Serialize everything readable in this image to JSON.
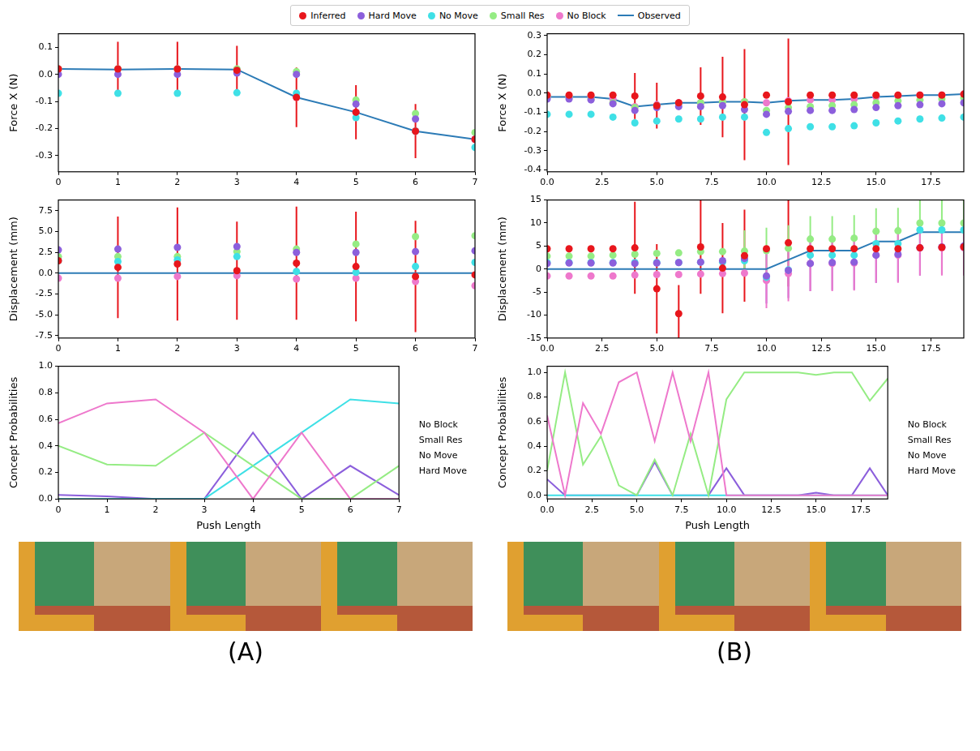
{
  "panel_labels": [
    "(A)",
    "(B)"
  ],
  "chart_data": [
    {
      "type": "scatter",
      "y_label": "Force X (N)",
      "grid": false,
      "legend": "top",
      "x": [
        0,
        1,
        2,
        3,
        4,
        5,
        6,
        7
      ],
      "xlim": [
        0,
        7
      ],
      "xticks": [
        0,
        1,
        2,
        3,
        4,
        5,
        6,
        7
      ],
      "ylim": [
        -0.36,
        0.15
      ],
      "yticks": [
        -0.3,
        -0.2,
        -0.1,
        {
          "value": 0,
          "label": "0.0"
        },
        0.1
      ],
      "series": [
        {
          "name": "Inferred",
          "color": "#e8161c",
          "marker": "circle",
          "values": [
            0.02,
            0.02,
            0.02,
            0.015,
            -0.085,
            -0.14,
            -0.21,
            -0.24
          ],
          "errors": [
            0,
            0.1,
            0.1,
            0.09,
            0.11,
            0.1,
            0.1,
            0
          ]
        },
        {
          "name": "Hard Move",
          "color": "#8c5fdc",
          "marker": "circle",
          "values": [
            0.0,
            0.0,
            0.0,
            0.005,
            0.0,
            -0.11,
            -0.165,
            -0.24
          ]
        },
        {
          "name": "No Move",
          "color": "#3fe0e6",
          "marker": "circle",
          "values": [
            -0.07,
            -0.07,
            -0.07,
            -0.068,
            -0.07,
            -0.16,
            -0.21,
            -0.27
          ]
        },
        {
          "name": "Small Res",
          "color": "#95ec84",
          "marker": "circle",
          "values": [
            0.02,
            0.02,
            0.02,
            0.02,
            0.01,
            -0.095,
            -0.145,
            -0.215
          ]
        },
        {
          "name": "No Block",
          "color": "#ee78cc",
          "marker": "circle",
          "values": [
            0.02,
            0.02,
            0.02,
            0.018,
            -0.085,
            -0.14,
            -0.21,
            -0.24
          ]
        },
        {
          "name": "Observed",
          "color": "#2c7bb6",
          "type": "line",
          "line_style": "solid",
          "values": [
            0.02,
            0.018,
            0.02,
            0.018,
            -0.085,
            -0.14,
            -0.21,
            -0.24
          ]
        }
      ]
    },
    {
      "type": "scatter",
      "y_label": "Displacement (mm)",
      "grid": false,
      "x": [
        0,
        1,
        2,
        3,
        4,
        5,
        6,
        7
      ],
      "xlim": [
        0,
        7
      ],
      "xticks": [
        0,
        1,
        2,
        3,
        4,
        5,
        6,
        7
      ],
      "ylim": [
        -7.8,
        8.8
      ],
      "yticks": [
        -7.5,
        {
          "value": -5,
          "label": "-5.0"
        },
        -2.5,
        {
          "value": 0,
          "label": "0.0"
        },
        2.5,
        {
          "value": 5,
          "label": "5.0"
        },
        7.5
      ],
      "series": [
        {
          "name": "Inferred",
          "color": "#e8161c",
          "marker": "circle",
          "values": [
            1.5,
            0.7,
            1.1,
            0.3,
            1.2,
            0.8,
            -0.4,
            -0.2
          ],
          "errors": [
            0,
            6.1,
            6.8,
            5.9,
            6.8,
            6.6,
            6.7,
            0
          ]
        },
        {
          "name": "Hard Move",
          "color": "#8c5fdc",
          "marker": "circle",
          "values": [
            2.8,
            2.9,
            3.1,
            3.2,
            2.5,
            2.5,
            2.6,
            2.7
          ]
        },
        {
          "name": "No Move",
          "color": "#3fe0e6",
          "marker": "circle",
          "values": [
            1.5,
            1.4,
            1.6,
            2.0,
            0.2,
            0.1,
            0.8,
            1.3
          ]
        },
        {
          "name": "Small Res",
          "color": "#95ec84",
          "marker": "circle",
          "values": [
            2.0,
            2.0,
            2.0,
            2.6,
            2.9,
            3.5,
            4.4,
            4.5
          ]
        },
        {
          "name": "No Block",
          "color": "#ee78cc",
          "marker": "circle",
          "values": [
            -0.6,
            -0.6,
            -0.4,
            -0.3,
            -0.7,
            -0.6,
            -1.0,
            -1.5
          ]
        },
        {
          "name": "Observed",
          "color": "#2c7bb6",
          "type": "line",
          "line_style": "solid",
          "values": [
            0,
            0,
            0,
            0,
            0,
            0,
            0,
            0
          ]
        }
      ]
    },
    {
      "type": "line",
      "x_label": "Push Length",
      "y_label": "Concept Probabilities",
      "grid": false,
      "legend": "right",
      "x": [
        0,
        1,
        2,
        3,
        4,
        5,
        6,
        7
      ],
      "xlim": [
        0,
        7
      ],
      "xticks": [
        0,
        1,
        2,
        3,
        4,
        5,
        6,
        7
      ],
      "ylim": [
        0,
        1
      ],
      "yticks": [
        {
          "value": 0,
          "label": "0.0"
        },
        0.2,
        0.4,
        0.6,
        0.8,
        {
          "value": 1,
          "label": "1.0"
        }
      ],
      "series": [
        {
          "name": "No Block",
          "color": "#ee78cc",
          "line_style": "solid",
          "values": [
            0.57,
            0.72,
            0.75,
            0.5,
            0.0,
            0.5,
            0.0,
            0.0
          ]
        },
        {
          "name": "Small Res",
          "color": "#95ec84",
          "line_style": "solid",
          "values": [
            0.4,
            0.26,
            0.25,
            0.5,
            0.25,
            0.0,
            0.0,
            0.25
          ]
        },
        {
          "name": "No Move",
          "color": "#3fe0e6",
          "line_style": "solid",
          "values": [
            0.0,
            0.0,
            0.0,
            0.0,
            0.25,
            0.5,
            0.75,
            0.72
          ]
        },
        {
          "name": "Hard Move",
          "color": "#8c5fdc",
          "line_style": "solid",
          "values": [
            0.03,
            0.02,
            0.0,
            0.0,
            0.5,
            0.0,
            0.25,
            0.03
          ]
        }
      ]
    },
    {
      "type": "scatter",
      "y_label": "Force X (N)",
      "grid": false,
      "x": [
        0,
        1,
        2,
        3,
        4,
        5,
        6,
        7,
        8,
        9,
        10,
        11,
        12,
        13,
        14,
        15,
        16,
        17,
        18,
        19
      ],
      "xlim": [
        0,
        19
      ],
      "xticks": [
        {
          "value": 0,
          "label": "0.0"
        },
        2.5,
        {
          "value": 5,
          "label": "5.0"
        },
        7.5,
        {
          "value": 10,
          "label": "10.0"
        },
        12.5,
        {
          "value": 15,
          "label": "15.0"
        },
        17.5
      ],
      "ylim": [
        -0.41,
        0.31
      ],
      "yticks": [
        -0.4,
        -0.3,
        -0.2,
        -0.1,
        {
          "value": 0,
          "label": "0.0"
        },
        0.1,
        0.2,
        0.3
      ],
      "series": [
        {
          "name": "Inferred",
          "color": "#e8161c",
          "marker": "circle",
          "values": [
            -0.01,
            -0.01,
            -0.01,
            -0.01,
            -0.015,
            -0.065,
            -0.05,
            -0.015,
            -0.02,
            -0.06,
            -0.01,
            -0.045,
            -0.01,
            -0.01,
            -0.01,
            -0.01,
            -0.01,
            -0.01,
            -0.01,
            -0.005
          ],
          "errors": [
            0,
            0,
            0,
            0,
            0.12,
            0.12,
            0.02,
            0.15,
            0.21,
            0.29,
            0,
            0.33,
            0,
            0,
            0,
            0,
            0,
            0,
            0,
            0
          ]
        },
        {
          "name": "Hard Move",
          "color": "#8c5fdc",
          "marker": "circle",
          "values": [
            -0.03,
            -0.03,
            -0.035,
            -0.055,
            -0.09,
            -0.075,
            -0.07,
            -0.07,
            -0.065,
            -0.085,
            -0.11,
            -0.095,
            -0.09,
            -0.09,
            -0.085,
            -0.075,
            -0.065,
            -0.06,
            -0.055,
            -0.05
          ]
        },
        {
          "name": "No Move",
          "color": "#3fe0e6",
          "marker": "circle",
          "values": [
            -0.11,
            -0.11,
            -0.11,
            -0.125,
            -0.155,
            -0.145,
            -0.135,
            -0.135,
            -0.125,
            -0.125,
            -0.205,
            -0.185,
            -0.175,
            -0.175,
            -0.17,
            -0.155,
            -0.145,
            -0.135,
            -0.13,
            -0.125
          ]
        },
        {
          "name": "Small Res",
          "color": "#95ec84",
          "marker": "circle",
          "values": [
            -0.02,
            -0.02,
            -0.03,
            -0.05,
            -0.075,
            -0.065,
            -0.055,
            -0.05,
            -0.045,
            -0.045,
            -0.09,
            -0.075,
            -0.07,
            -0.065,
            -0.06,
            -0.05,
            -0.04,
            -0.035,
            -0.03,
            -0.025
          ]
        },
        {
          "name": "No Block",
          "color": "#ee78cc",
          "marker": "circle",
          "values": [
            -0.02,
            -0.02,
            -0.02,
            -0.03,
            -0.07,
            -0.06,
            -0.05,
            -0.05,
            -0.045,
            -0.045,
            -0.05,
            -0.04,
            -0.035,
            -0.035,
            -0.03,
            -0.02,
            -0.015,
            -0.01,
            -0.01,
            -0.005
          ]
        },
        {
          "name": "Observed",
          "color": "#2c7bb6",
          "type": "line",
          "line_style": "solid",
          "values": [
            -0.02,
            -0.02,
            -0.02,
            -0.03,
            -0.07,
            -0.06,
            -0.05,
            -0.05,
            -0.045,
            -0.045,
            -0.05,
            -0.04,
            -0.035,
            -0.035,
            -0.03,
            -0.02,
            -0.015,
            -0.01,
            -0.01,
            -0.005
          ]
        }
      ]
    },
    {
      "type": "scatter",
      "y_label": "Displacement (mm)",
      "grid": false,
      "x": [
        0,
        1,
        2,
        3,
        4,
        5,
        6,
        7,
        8,
        9,
        10,
        11,
        12,
        13,
        14,
        15,
        16,
        17,
        18,
        19
      ],
      "xlim": [
        0,
        19
      ],
      "xticks": [
        {
          "value": 0,
          "label": "0.0"
        },
        2.5,
        {
          "value": 5,
          "label": "5.0"
        },
        7.5,
        {
          "value": 10,
          "label": "10.0"
        },
        12.5,
        {
          "value": 15,
          "label": "15.0"
        },
        17.5
      ],
      "ylim": [
        -15,
        15
      ],
      "yticks": [
        -15,
        -10,
        -5,
        0,
        5,
        10,
        15
      ],
      "series": [
        {
          "name": "Inferred",
          "color": "#e8161c",
          "marker": "circle",
          "values": [
            4.4,
            4.4,
            4.4,
            4.4,
            4.6,
            -4.3,
            -9.7,
            4.8,
            0.2,
            2.9,
            4.4,
            5.7,
            4.4,
            4.4,
            4.4,
            4.4,
            4.4,
            4.6,
            4.7,
            4.8
          ],
          "errors": [
            0,
            0,
            0,
            0,
            10,
            9.7,
            6.2,
            10.2,
            9.8,
            10,
            0,
            9.5,
            0,
            0,
            0,
            0,
            0,
            0,
            0,
            0
          ]
        },
        {
          "name": "Hard Move",
          "color": "#8c5fdc",
          "marker": "circle",
          "values": [
            1.2,
            1.3,
            1.3,
            1.3,
            1.2,
            1.3,
            1.4,
            1.5,
            1.8,
            2.3,
            -1.5,
            -0.3,
            1.2,
            1.4,
            1.5,
            3.0,
            3.2,
            4.6,
            4.8,
            5.0
          ],
          "errors": [
            0,
            0,
            0,
            0,
            0,
            0,
            0,
            0,
            0,
            0,
            6,
            6,
            6,
            6,
            6,
            6,
            6,
            6,
            6,
            6
          ]
        },
        {
          "name": "No Move",
          "color": "#3fe0e6",
          "marker": "circle",
          "values": [
            1.4,
            1.4,
            1.4,
            1.4,
            1.4,
            1.4,
            1.4,
            1.5,
            1.5,
            1.8,
            -1.8,
            -0.2,
            3.0,
            3.0,
            3.0,
            5.5,
            5.5,
            8.5,
            8.5,
            8.5
          ]
        },
        {
          "name": "Small Res",
          "color": "#95ec84",
          "marker": "circle",
          "values": [
            2.8,
            2.8,
            2.8,
            3.0,
            3.2,
            3.4,
            3.5,
            3.8,
            3.8,
            3.9,
            4.0,
            4.5,
            6.5,
            6.5,
            6.7,
            8.2,
            8.3,
            10,
            10,
            10
          ],
          "errors": [
            0,
            0,
            0,
            0,
            0,
            0,
            0,
            0,
            0,
            4.5,
            5,
            5,
            5,
            5,
            5,
            5,
            5,
            5,
            5,
            5
          ]
        },
        {
          "name": "No Block",
          "color": "#ee78cc",
          "marker": "circle",
          "values": [
            -1.5,
            -1.5,
            -1.5,
            -1.5,
            -1.3,
            -1.2,
            -1.2,
            -1.1,
            -1.0,
            -0.9,
            -2.5,
            -1.0,
            1.2,
            1.2,
            1.3,
            3.0,
            3.0,
            4.6,
            4.6,
            4.6
          ],
          "errors": [
            0,
            0,
            0,
            0,
            0,
            0,
            0,
            0,
            0,
            0,
            6,
            6,
            6,
            6,
            6,
            6,
            6,
            6,
            6,
            6
          ]
        },
        {
          "name": "Observed",
          "color": "#2c7bb6",
          "type": "line",
          "line_style": "solid",
          "values": [
            0,
            0,
            0,
            0,
            0,
            0,
            0,
            0,
            0,
            0,
            0,
            2,
            4,
            4,
            4,
            6,
            6,
            8,
            8,
            8
          ]
        }
      ]
    },
    {
      "type": "line",
      "x_label": "Push Length",
      "y_label": "Concept Probabilities",
      "grid": false,
      "legend": "right",
      "x": [
        0,
        1,
        2,
        3,
        4,
        5,
        6,
        7,
        8,
        9,
        10,
        11,
        12,
        13,
        14,
        15,
        16,
        17,
        18,
        19
      ],
      "xlim": [
        0,
        19
      ],
      "xticks": [
        {
          "value": 0,
          "label": "0.0"
        },
        2.5,
        {
          "value": 5,
          "label": "5.0"
        },
        7.5,
        {
          "value": 10,
          "label": "10.0"
        },
        12.5,
        {
          "value": 15,
          "label": "15.0"
        },
        17.5
      ],
      "ylim": [
        -0.03,
        1.05
      ],
      "yticks": [
        {
          "value": 0,
          "label": "0.0"
        },
        0.2,
        0.4,
        0.6,
        0.8,
        {
          "value": 1,
          "label": "1.0"
        }
      ],
      "series": [
        {
          "name": "No Block",
          "color": "#ee78cc",
          "line_style": "solid",
          "values": [
            0.65,
            0.0,
            0.75,
            0.5,
            0.92,
            1.0,
            0.44,
            1.0,
            0.44,
            1.0,
            0.0,
            0.0,
            0.0,
            0.0,
            0.0,
            0.0,
            0.0,
            0.0,
            0.0,
            0.0
          ]
        },
        {
          "name": "Small Res",
          "color": "#95ec84",
          "line_style": "solid",
          "values": [
            0.2,
            1.0,
            0.25,
            0.48,
            0.08,
            0.0,
            0.29,
            0.0,
            0.5,
            0.0,
            0.78,
            1.0,
            1.0,
            1.0,
            1.0,
            0.98,
            1.0,
            1.0,
            0.77,
            0.95
          ]
        },
        {
          "name": "No Move",
          "color": "#3fe0e6",
          "line_style": "solid",
          "values": [
            0.0,
            0.0,
            0.0,
            0.0,
            0.0,
            0.0,
            0.0,
            0.0,
            0.0,
            0.0,
            0.0,
            0.0,
            0.0,
            0.0,
            0.0,
            0.0,
            0.0,
            0.0,
            0.0,
            0.0
          ]
        },
        {
          "name": "Hard Move",
          "color": "#8c5fdc",
          "line_style": "solid",
          "values": [
            0.13,
            0.0,
            0.0,
            0.0,
            0.0,
            0.0,
            0.27,
            0.0,
            0.0,
            0.0,
            0.22,
            0.0,
            0.0,
            0.0,
            0.0,
            0.02,
            0.0,
            0.0,
            0.22,
            0.0
          ]
        }
      ]
    }
  ]
}
